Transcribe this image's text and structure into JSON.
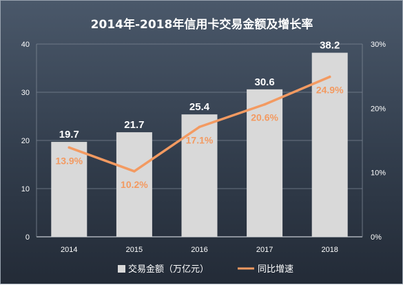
{
  "chart_data": {
    "type": "bar",
    "title": "2014年-2018年信用卡交易金额及增长率",
    "categories": [
      "2014",
      "2015",
      "2016",
      "2017",
      "2018"
    ],
    "series": [
      {
        "name": "交易金额（万亿元）",
        "type": "bar",
        "axis": "left",
        "values": [
          19.7,
          21.7,
          25.4,
          30.6,
          38.2
        ],
        "labels": [
          "19.7",
          "21.7",
          "25.4",
          "30.6",
          "38.2"
        ],
        "color": "#d9d9d9"
      },
      {
        "name": "同比增速",
        "type": "line",
        "axis": "right",
        "values": [
          13.9,
          10.2,
          17.1,
          20.6,
          24.9
        ],
        "labels": [
          "13.9%",
          "10.2%",
          "17.1%",
          "20.6%",
          "24.9%"
        ],
        "color": "#f39a61"
      }
    ],
    "ylim": [
      0,
      40
    ],
    "yticks": [
      "0",
      "10",
      "20",
      "30",
      "40"
    ],
    "y2lim": [
      0,
      30
    ],
    "y2ticks": [
      "0%",
      "10%",
      "20%",
      "30%"
    ],
    "grid": true,
    "legend_position": "bottom"
  }
}
